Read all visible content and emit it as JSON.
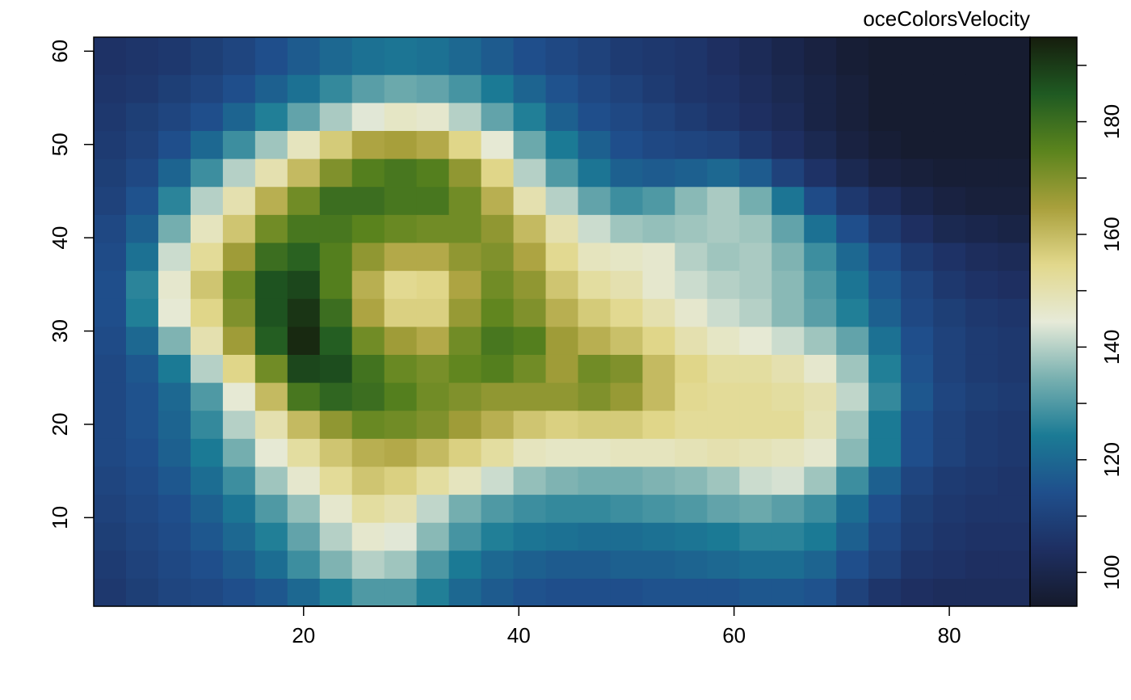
{
  "chart_data": {
    "type": "heatmap",
    "title": "oceColorsVelocity",
    "x": [
      2,
      5,
      8,
      11,
      14,
      17,
      20,
      23,
      26,
      29,
      32,
      35,
      38,
      41,
      44,
      47,
      50,
      53,
      56,
      59,
      62,
      65,
      68,
      71,
      74,
      77,
      80,
      83,
      86
    ],
    "y": [
      2,
      5,
      8,
      11,
      14,
      17,
      20,
      23,
      26,
      29,
      32,
      35,
      38,
      41,
      44,
      47,
      50,
      53,
      56,
      59
    ],
    "values": [
      [
        107,
        109,
        111,
        112,
        114,
        116,
        120,
        125,
        130,
        130,
        125,
        120,
        117,
        115,
        114,
        114,
        114,
        115,
        115,
        115,
        116,
        116,
        115,
        110,
        106,
        104,
        103,
        103,
        103
      ],
      [
        108,
        110,
        112,
        114,
        117,
        121,
        128,
        135,
        140,
        138,
        130,
        124,
        120,
        118,
        117,
        117,
        118,
        118,
        119,
        120,
        121,
        121,
        119,
        114,
        110,
        106,
        105,
        104,
        104
      ],
      [
        109,
        111,
        113,
        116,
        120,
        125,
        132,
        140,
        146,
        144,
        136,
        129,
        125,
        123,
        122,
        121,
        121,
        122,
        123,
        124,
        126,
        126,
        124,
        118,
        112,
        108,
        106,
        105,
        105
      ],
      [
        110,
        112,
        114,
        118,
        123,
        130,
        137,
        146,
        152,
        150,
        141,
        134,
        130,
        128,
        127,
        127,
        128,
        129,
        130,
        132,
        133,
        131,
        128,
        121,
        114,
        109,
        107,
        106,
        106
      ],
      [
        111,
        113,
        116,
        121,
        128,
        138,
        146,
        153,
        158,
        156,
        152,
        148,
        142,
        137,
        135,
        134,
        134,
        135,
        136,
        138,
        142,
        143,
        138,
        128,
        118,
        111,
        108,
        107,
        106
      ],
      [
        112,
        114,
        118,
        124,
        134,
        145,
        152,
        158,
        162,
        163,
        160,
        156,
        152,
        148,
        147,
        147,
        148,
        148,
        149,
        150,
        149,
        148,
        146,
        136,
        124,
        114,
        110,
        108,
        107
      ],
      [
        112,
        115,
        119,
        127,
        140,
        150,
        160,
        168,
        173,
        172,
        170,
        166,
        162,
        158,
        156,
        157,
        157,
        155,
        153,
        153,
        153,
        153,
        149,
        138,
        124,
        114,
        110,
        108,
        107
      ],
      [
        112,
        115,
        120,
        130,
        145,
        160,
        178,
        182,
        180,
        176,
        172,
        170,
        168,
        168,
        168,
        170,
        167,
        160,
        154,
        153,
        153,
        152,
        150,
        141,
        127,
        116,
        111,
        109,
        108
      ],
      [
        112,
        116,
        124,
        140,
        155,
        172,
        188,
        187,
        179,
        173,
        171,
        174,
        176,
        172,
        166,
        172,
        170,
        160,
        155,
        152,
        152,
        150,
        146,
        138,
        125,
        115,
        110,
        108,
        107
      ],
      [
        113,
        120,
        135,
        150,
        166,
        184,
        193,
        184,
        172,
        166,
        163,
        172,
        178,
        176,
        166,
        162,
        159,
        155,
        150,
        147,
        145,
        142,
        138,
        132,
        122,
        114,
        110,
        108,
        107
      ],
      [
        114,
        125,
        145,
        155,
        170,
        186,
        191,
        180,
        164,
        156,
        156,
        167,
        174,
        170,
        162,
        157,
        154,
        150,
        146,
        142,
        140,
        136,
        131,
        125,
        118,
        112,
        109,
        107,
        106
      ],
      [
        114,
        126,
        146,
        158,
        172,
        186,
        188,
        176,
        162,
        154,
        155,
        164,
        172,
        168,
        158,
        152,
        150,
        146,
        142,
        140,
        139,
        136,
        130,
        123,
        116,
        111,
        107,
        105,
        104
      ],
      [
        113,
        122,
        142,
        153,
        166,
        180,
        183,
        176,
        168,
        163,
        163,
        168,
        170,
        164,
        154,
        148,
        147,
        146,
        140,
        138,
        139,
        135,
        128,
        120,
        113,
        108,
        105,
        103,
        102
      ],
      [
        112,
        118,
        134,
        148,
        158,
        172,
        178,
        178,
        175,
        173,
        172,
        172,
        168,
        160,
        150,
        142,
        138,
        137,
        138,
        139,
        138,
        132,
        122,
        114,
        108,
        104,
        101,
        100,
        99
      ],
      [
        110,
        115,
        126,
        140,
        150,
        162,
        172,
        180,
        180,
        178,
        178,
        172,
        162,
        150,
        140,
        132,
        128,
        130,
        136,
        139,
        134,
        123,
        113,
        107,
        103,
        100,
        98,
        97,
        97
      ],
      [
        109,
        112,
        119,
        128,
        140,
        150,
        160,
        170,
        176,
        178,
        176,
        168,
        155,
        140,
        130,
        123,
        118,
        117,
        118,
        120,
        117,
        110,
        105,
        101,
        98,
        97,
        96,
        96,
        96
      ],
      [
        108,
        110,
        114,
        120,
        128,
        138,
        148,
        157,
        164,
        165,
        163,
        155,
        145,
        133,
        124,
        118,
        114,
        112,
        111,
        110,
        107,
        104,
        101,
        98,
        96,
        95,
        95,
        95,
        95
      ],
      [
        107,
        109,
        111,
        114,
        119,
        125,
        132,
        139,
        144,
        147,
        146,
        140,
        132,
        125,
        118,
        114,
        112,
        110,
        108,
        106,
        104,
        102,
        99,
        97,
        95,
        95,
        95,
        95,
        95
      ],
      [
        106,
        107,
        109,
        111,
        114,
        118,
        122,
        127,
        131,
        133,
        132,
        129,
        124,
        119,
        115,
        112,
        110,
        108,
        106,
        105,
        103,
        101,
        99,
        97,
        95,
        95,
        95,
        95,
        95
      ],
      [
        105,
        106,
        107,
        109,
        111,
        114,
        117,
        120,
        122,
        123,
        122,
        120,
        117,
        114,
        112,
        110,
        108,
        107,
        106,
        104,
        102,
        100,
        98,
        96,
        95,
        95,
        95,
        95,
        95
      ]
    ],
    "xlim": [
      0.5,
      87.5
    ],
    "ylim": [
      0.5,
      61.5
    ],
    "xticks": [
      20,
      40,
      60,
      80
    ],
    "yticks": [
      10,
      20,
      30,
      40,
      50,
      60
    ],
    "zlim": [
      94,
      195
    ],
    "zticks": [
      100,
      120,
      140,
      160,
      180
    ],
    "zminor_ticks": [
      110,
      130,
      150,
      170,
      190
    ],
    "colors": [
      "#151a2b",
      "#1e2f62",
      "#1f4f8c",
      "#1b7b95",
      "#78b0b0",
      "#e6ead8",
      "#e2d88c",
      "#a9a03c",
      "#5b841d",
      "#1f5a22",
      "#161d0d"
    ]
  }
}
